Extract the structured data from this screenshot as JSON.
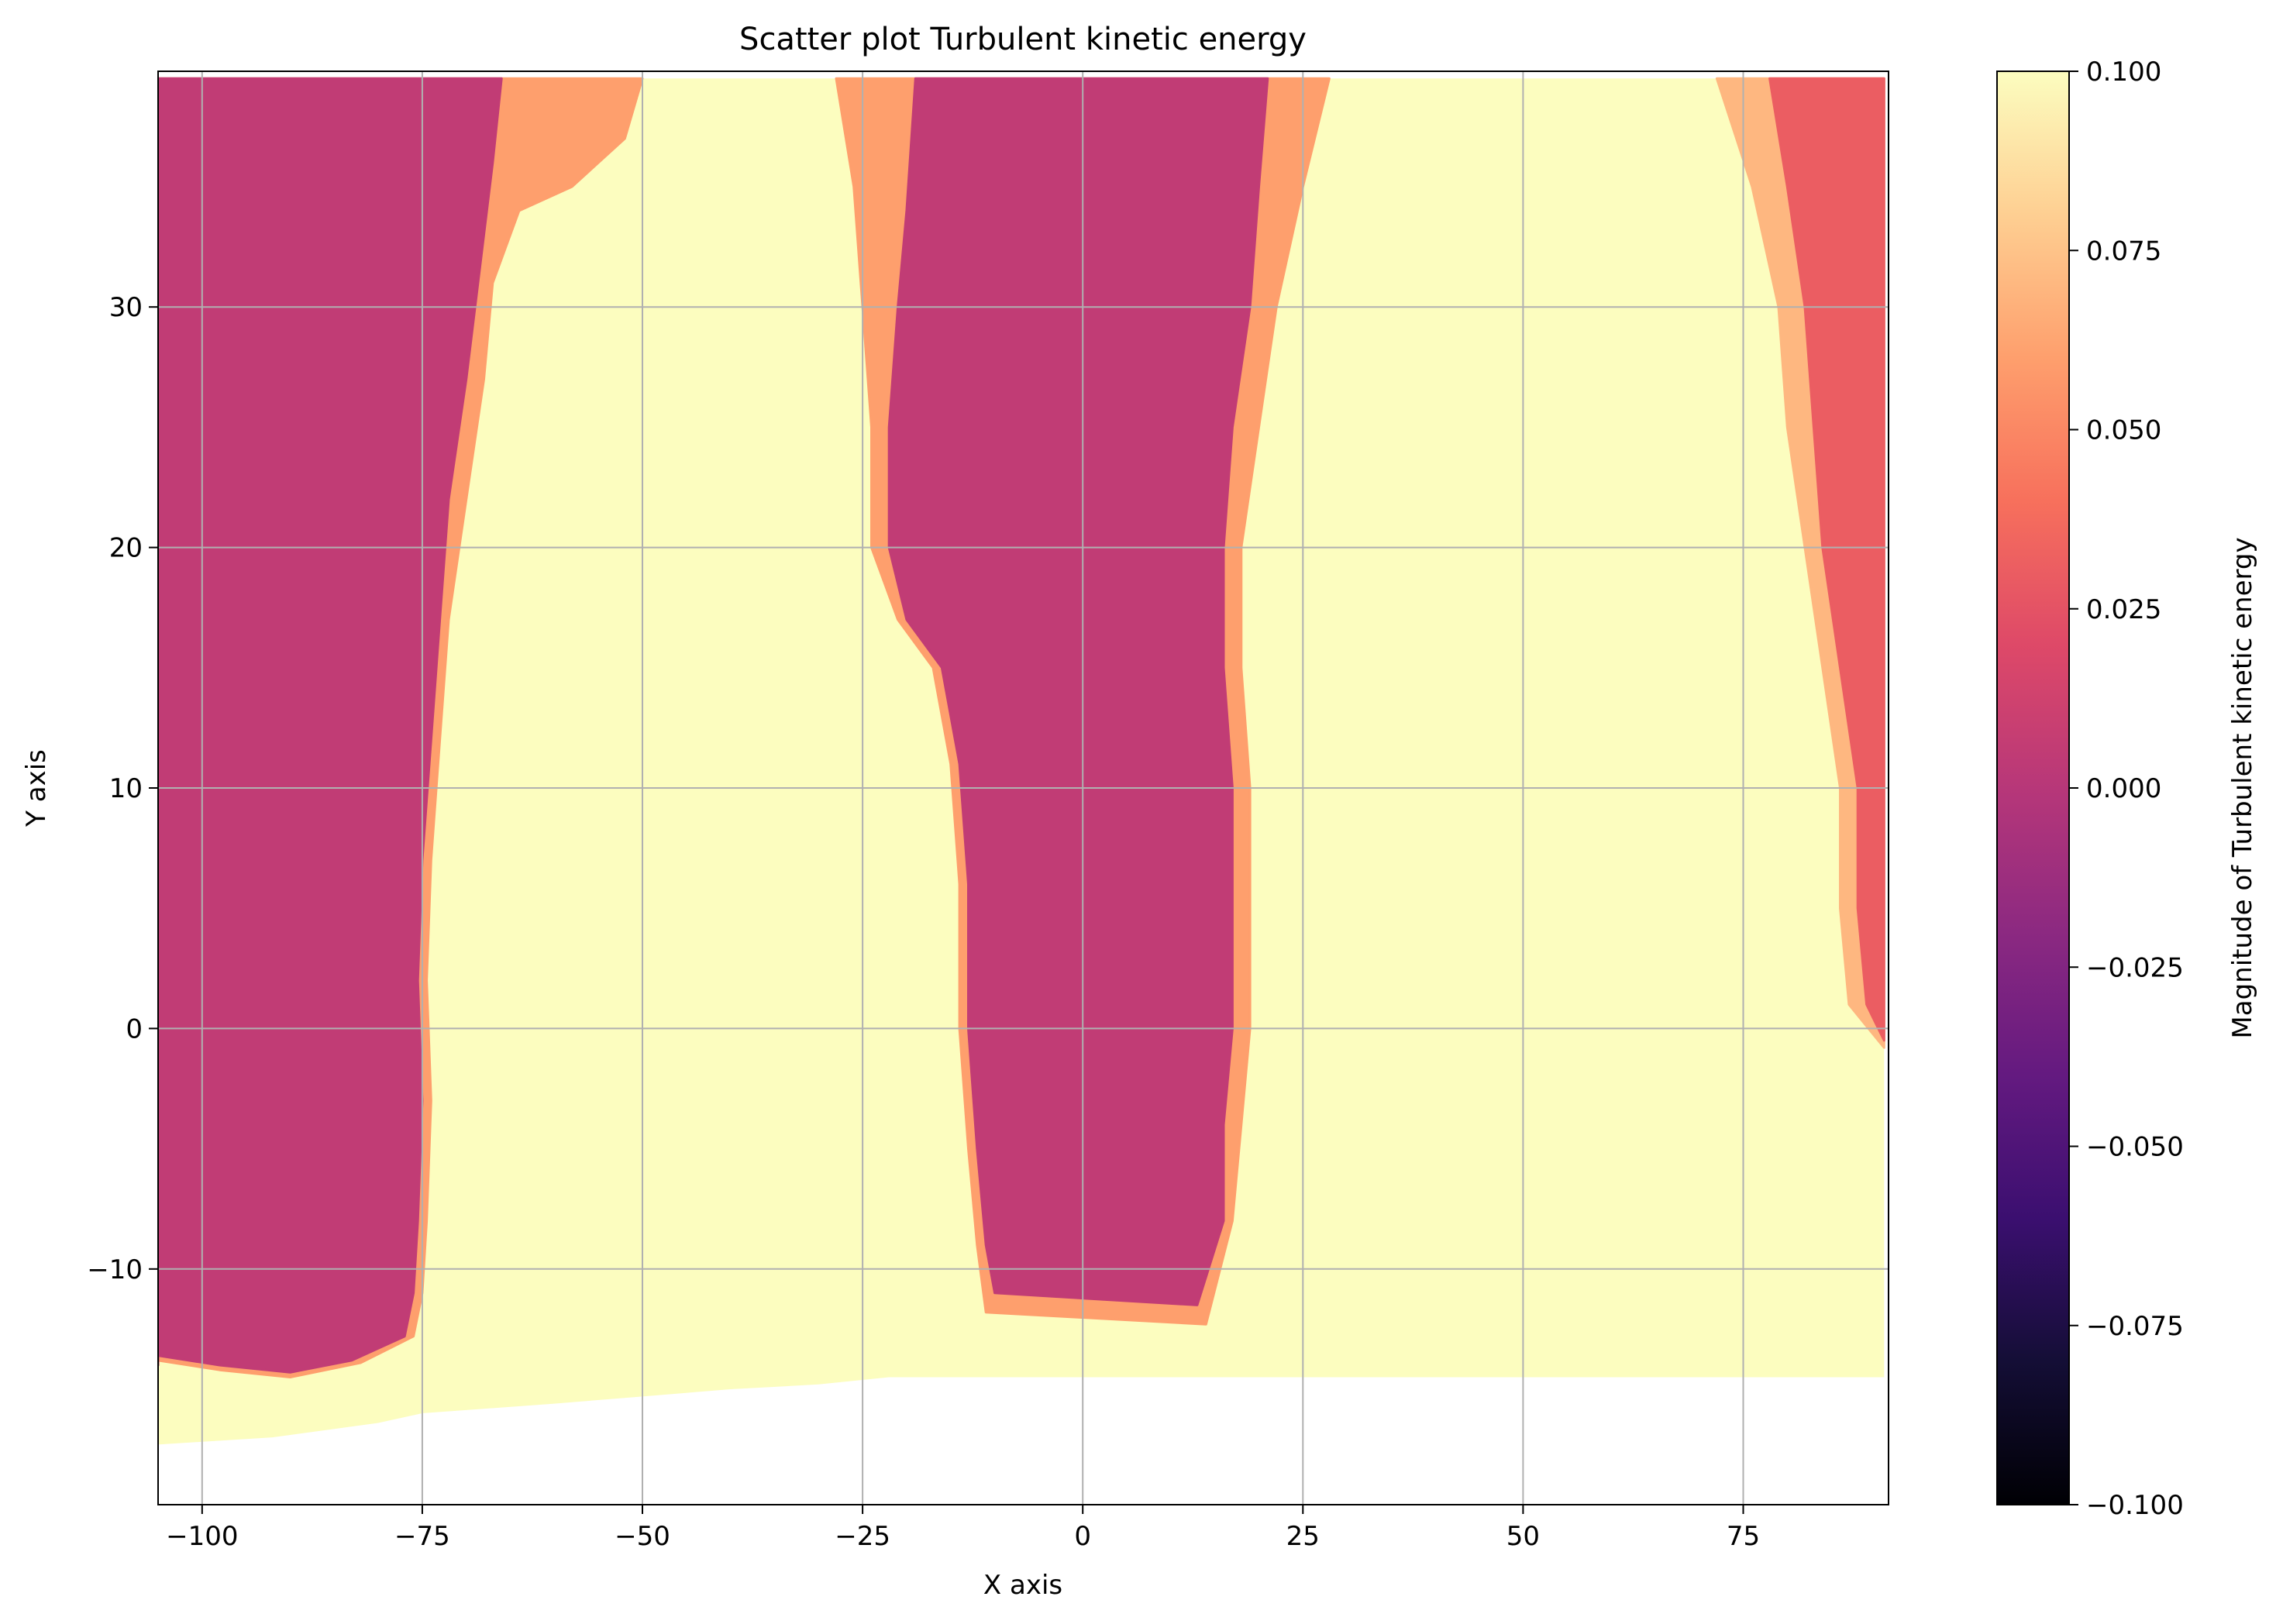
{
  "chart_data": {
    "type": "scatter",
    "title": "Scatter plot Turbulent kinetic energy",
    "xlabel": "X axis",
    "ylabel": "Y axis",
    "xlim": [
      -105,
      91.5
    ],
    "ylim": [
      -19.8,
      39.8
    ],
    "xticks": [
      -100,
      -75,
      -50,
      -25,
      0,
      25,
      50,
      75
    ],
    "yticks": [
      -10,
      0,
      10,
      20,
      30
    ],
    "xtick_labels": [
      "−100",
      "−75",
      "−50",
      "−25",
      "0",
      "25",
      "50",
      "75"
    ],
    "ytick_labels": [
      "−10",
      "0",
      "10",
      "20",
      "30"
    ],
    "grid": true,
    "colormap": "magma",
    "colorbar": {
      "label": "Magnitude of Turbulent kinetic energy",
      "vmin": -0.1,
      "vmax": 0.1,
      "ticks": [
        -0.1,
        -0.075,
        -0.05,
        -0.025,
        0.0,
        0.025,
        0.05,
        0.075,
        0.1
      ],
      "tick_labels": [
        "−0.100",
        "−0.075",
        "−0.050",
        "−0.025",
        "0.000",
        "0.025",
        "0.050",
        "0.075",
        "0.100"
      ],
      "colors": [
        "#000004",
        "#140e36",
        "#3b0f70",
        "#641a80",
        "#8c2981",
        "#b73779",
        "#de4968",
        "#f7705c",
        "#fe9f6d",
        "#fecf92",
        "#fcfdbf"
      ]
    },
    "domain_boundary": {
      "y_top": 39.5,
      "x_right": 91,
      "bottom_edge": [
        [
          -105,
          -17.3
        ],
        [
          -92,
          -17.0
        ],
        [
          -80,
          -16.4
        ],
        [
          -75,
          -16.0
        ],
        [
          -60,
          -15.6
        ],
        [
          -50,
          -15.3
        ],
        [
          -40,
          -15.0
        ],
        [
          -30,
          -14.8
        ],
        [
          -22,
          -14.5
        ],
        [
          91,
          -14.5
        ]
      ]
    },
    "series": [
      {
        "value": 0.1,
        "description_color": "#fcfdbf"
      }
    ],
    "regions": [
      {
        "level": 0.005,
        "left": [
          [
            -105,
            -14.0
          ],
          [
            -105,
            39.5
          ]
        ],
        "right": [
          [
            -66,
            39.5
          ],
          [
            -67,
            36
          ],
          [
            -69,
            30
          ],
          [
            -70,
            27
          ],
          [
            -72,
            22
          ],
          [
            -73,
            17
          ],
          [
            -74,
            12
          ],
          [
            -75,
            7
          ],
          [
            -75.5,
            2
          ],
          [
            -75,
            -3
          ],
          [
            -75.5,
            -8
          ],
          [
            -76,
            -11
          ],
          [
            -77,
            -12.8
          ],
          [
            -83,
            -13.8
          ],
          [
            -90,
            -14.3
          ],
          [
            -98,
            -14.0
          ],
          [
            -105,
            -13.6
          ]
        ]
      },
      {
        "level": 0.06,
        "left": [
          [
            -105,
            -13.6
          ],
          [
            -105,
            39.5
          ]
        ],
        "right": [
          [
            -50,
            39.5
          ],
          [
            -52,
            37
          ],
          [
            -58,
            35
          ],
          [
            -64,
            34
          ],
          [
            -67,
            31
          ],
          [
            -68,
            27
          ],
          [
            -70,
            22
          ],
          [
            -72,
            17
          ],
          [
            -73,
            12
          ],
          [
            -74,
            7
          ],
          [
            -74.5,
            2
          ],
          [
            -74,
            -3
          ],
          [
            -74.5,
            -8
          ],
          [
            -75,
            -11
          ],
          [
            -76,
            -12.8
          ],
          [
            -82,
            -13.9
          ],
          [
            -90,
            -14.5
          ],
          [
            -98,
            -14.2
          ],
          [
            -105,
            -13.8
          ]
        ]
      },
      {
        "level": 0.005,
        "left": [
          [
            -19,
            39.5
          ],
          [
            -20,
            34
          ],
          [
            -21,
            30
          ],
          [
            -22,
            25
          ],
          [
            -22,
            20
          ],
          [
            -20,
            17
          ],
          [
            -16,
            15
          ],
          [
            -14,
            11
          ],
          [
            -13,
            6
          ],
          [
            -13,
            0
          ],
          [
            -12,
            -5
          ],
          [
            -11,
            -9
          ],
          [
            -10,
            -11
          ]
        ],
        "right": [
          [
            13,
            -11.5
          ],
          [
            16,
            -8
          ],
          [
            16,
            -4
          ],
          [
            17,
            0
          ],
          [
            17,
            5
          ],
          [
            17,
            10
          ],
          [
            16,
            15
          ],
          [
            16,
            20
          ],
          [
            17,
            25
          ],
          [
            19,
            30
          ],
          [
            20,
            35
          ],
          [
            21,
            39.5
          ]
        ]
      },
      {
        "level": 0.06,
        "left": [
          [
            -28,
            39.5
          ],
          [
            -26,
            35
          ],
          [
            -25,
            30
          ],
          [
            -24,
            25
          ],
          [
            -24,
            20
          ],
          [
            -21,
            17
          ],
          [
            -17,
            15
          ],
          [
            -15,
            11
          ],
          [
            -14,
            6
          ],
          [
            -14,
            0
          ],
          [
            -13,
            -5
          ],
          [
            -12,
            -9
          ],
          [
            -11,
            -11.8
          ]
        ],
        "right": [
          [
            14,
            -12.3
          ],
          [
            17,
            -8
          ],
          [
            18,
            -4
          ],
          [
            19,
            0
          ],
          [
            19,
            5
          ],
          [
            19,
            10
          ],
          [
            18,
            15
          ],
          [
            18,
            20
          ],
          [
            20,
            25
          ],
          [
            22,
            30
          ],
          [
            25,
            35
          ],
          [
            28,
            39.5
          ]
        ]
      },
      {
        "level": 0.03,
        "left": [
          [
            91,
            -0.5
          ],
          [
            89,
            1
          ],
          [
            88,
            5
          ],
          [
            88,
            10
          ],
          [
            86,
            15
          ],
          [
            84,
            20
          ],
          [
            83,
            25
          ],
          [
            82,
            30
          ],
          [
            80,
            35
          ],
          [
            78,
            39.5
          ]
        ],
        "right": [
          [
            91,
            39.5
          ],
          [
            91,
            -0.5
          ]
        ]
      },
      {
        "level": 0.07,
        "left": [
          [
            91,
            -0.8
          ],
          [
            87,
            1
          ],
          [
            86,
            5
          ],
          [
            86,
            10
          ],
          [
            84,
            15
          ],
          [
            82,
            20
          ],
          [
            80,
            25
          ],
          [
            79,
            30
          ],
          [
            76,
            35
          ],
          [
            72,
            39.5
          ]
        ],
        "right": [
          [
            91,
            39.5
          ],
          [
            91,
            -0.8
          ]
        ]
      }
    ]
  }
}
